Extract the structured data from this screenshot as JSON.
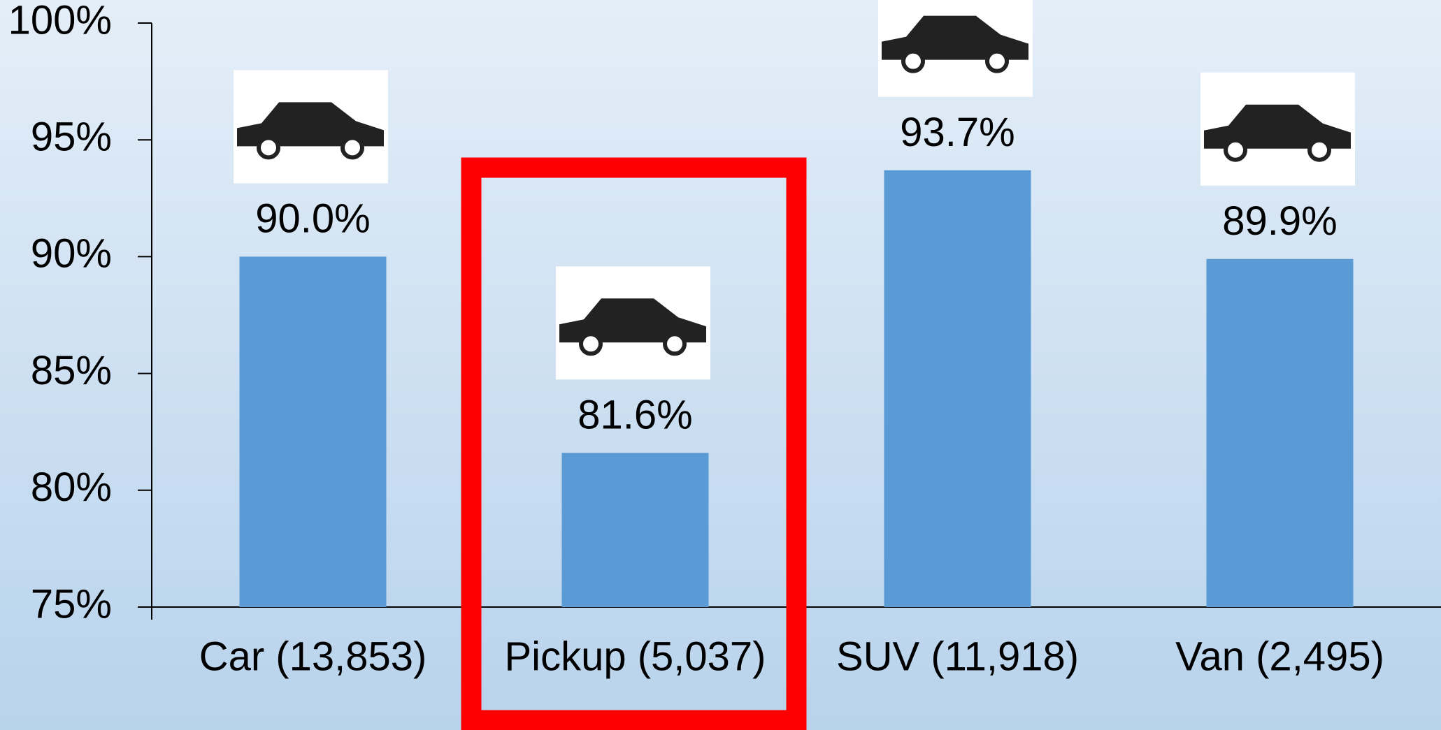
{
  "chart_data": {
    "type": "bar",
    "categories": [
      "Car (13,853)",
      "Pickup (5,037)",
      "SUV (11,918)",
      "Van (2,495)"
    ],
    "values": [
      90.0,
      81.6,
      93.7,
      89.9
    ],
    "value_labels": [
      "90.0%",
      "81.6%",
      "93.7%",
      "89.9%"
    ],
    "color": "#5b9bd5",
    "ylim": [
      75,
      100
    ],
    "yticks": [
      {
        "value": 75,
        "label": "75%"
      },
      {
        "value": 80,
        "label": "80%"
      },
      {
        "value": 85,
        "label": "85%"
      },
      {
        "value": 90,
        "label": "90%"
      },
      {
        "value": 95,
        "label": "95%"
      },
      {
        "value": 100,
        "label": "100%"
      }
    ],
    "grid": false
  }
}
